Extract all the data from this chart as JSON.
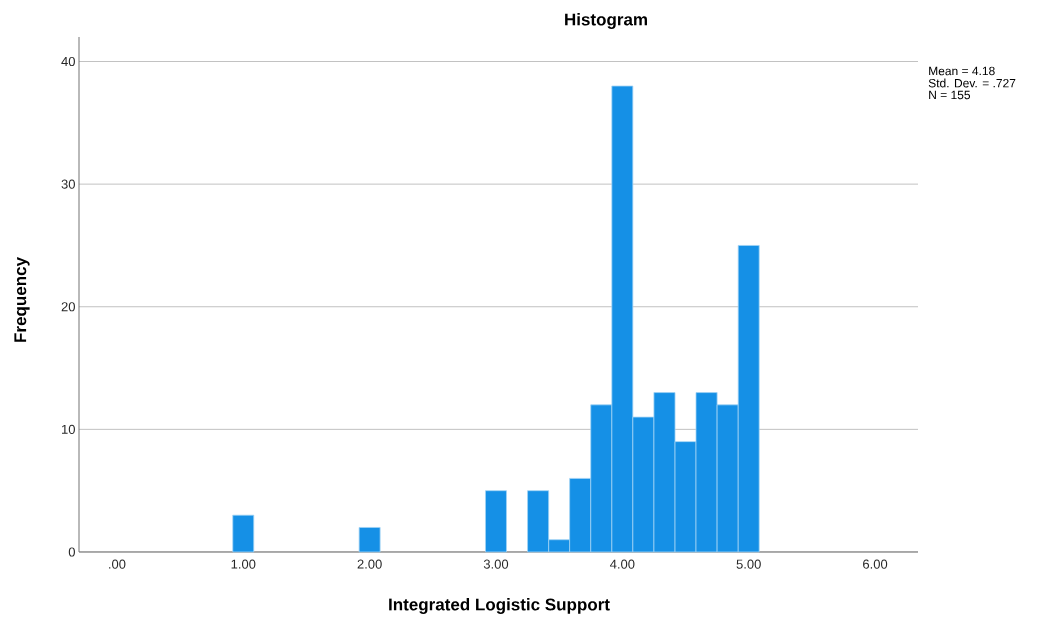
{
  "chart_data": {
    "type": "histogram",
    "title": "Histogram",
    "xlabel": "Integrated Logistic Support",
    "ylabel": "Frequency",
    "bins": [
      0.917,
      1.083,
      1.25,
      1.417,
      1.583,
      1.75,
      1.917,
      2.083,
      2.25,
      2.417,
      2.583,
      2.75,
      2.917,
      3.083,
      3.25,
      3.417,
      3.583,
      3.75,
      3.917,
      4.083,
      4.25,
      4.417,
      4.583,
      4.75,
      4.917,
      5.083
    ],
    "values": [
      3,
      0,
      0,
      0,
      0,
      0,
      2,
      0,
      0,
      0,
      0,
      0,
      5,
      0,
      5,
      1,
      6,
      12,
      38,
      11,
      13,
      9,
      13,
      12,
      25
    ],
    "color": "#1590e6",
    "xlim": [
      -0.3,
      6.34
    ],
    "ylim": [
      0,
      42
    ],
    "xticks": [
      {
        "value": 0,
        "label": ".00"
      },
      {
        "value": 1,
        "label": "1.00"
      },
      {
        "value": 2,
        "label": "2.00"
      },
      {
        "value": 3,
        "label": "3.00"
      },
      {
        "value": 4,
        "label": "4.00"
      },
      {
        "value": 5,
        "label": "5.00"
      },
      {
        "value": 6,
        "label": "6.00"
      }
    ],
    "yticks": [
      0,
      10,
      20,
      30,
      40
    ],
    "grid": "y",
    "annotations": [
      "Mean = 4.18",
      "Std. Dev. = .727",
      "N = 155"
    ]
  }
}
